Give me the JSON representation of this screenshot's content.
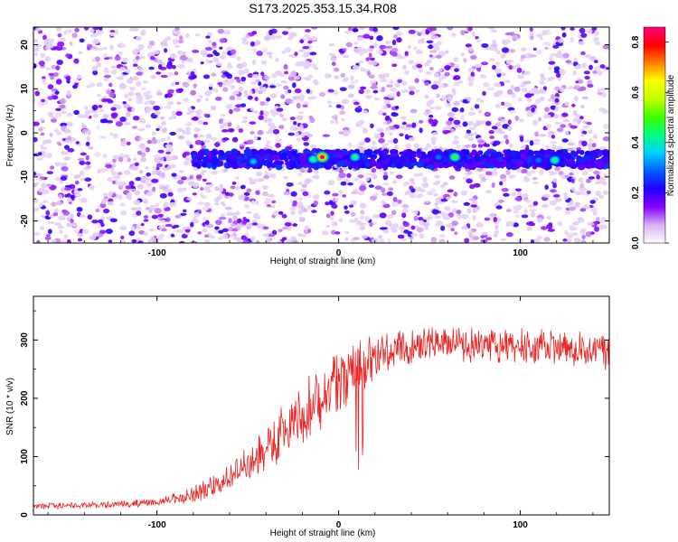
{
  "title": "S173.2025.353.15.34.R08",
  "chart_data": [
    {
      "type": "heatmap",
      "xlabel": "Height of straight line (km)",
      "ylabel": "Frequency (Hz)",
      "xlim": [
        -168,
        149
      ],
      "ylim": [
        -25,
        24
      ],
      "xticks": [
        -100,
        0,
        100
      ],
      "yticks": [
        -20,
        -10,
        0,
        10,
        20
      ],
      "colorbar": {
        "label": "Normalized spectral amplitude",
        "range": [
          0,
          0.86
        ],
        "ticks": [
          0.0,
          0.2,
          0.4,
          0.6,
          0.8
        ],
        "colors": [
          "#ffffff",
          "#d8b0f0",
          "#8a00ff",
          "#2000ff",
          "#0060ff",
          "#00d0ff",
          "#00ff80",
          "#40ff00",
          "#c0ff00",
          "#ffff00",
          "#ff8000",
          "#ff0000",
          "#ff0080"
        ]
      },
      "band": {
        "frequency_center": -6,
        "frequency_halfwidth": 1.8
      },
      "blank_column_x": [
        -12,
        -7
      ],
      "hotspots": [
        {
          "x": -47,
          "y": -6.5,
          "amp": 0.35
        },
        {
          "x": -14,
          "y": -6.0,
          "amp": 0.45
        },
        {
          "x": -9,
          "y": -5.5,
          "amp": 0.85
        },
        {
          "x": 9,
          "y": -5.5,
          "amp": 0.45
        },
        {
          "x": 55,
          "y": -5.5,
          "amp": 0.3
        },
        {
          "x": 64,
          "y": -5.5,
          "amp": 0.5
        },
        {
          "x": 110,
          "y": -6.2,
          "amp": 0.3
        },
        {
          "x": 119,
          "y": -6.2,
          "amp": 0.45
        }
      ]
    },
    {
      "type": "line",
      "xlabel": "Height of straight line (km)",
      "ylabel": "SNR (10 * v/v)",
      "xlim": [
        -168,
        149
      ],
      "ylim": [
        0,
        375
      ],
      "xticks": [
        -100,
        0,
        100
      ],
      "yticks": [
        0,
        100,
        200,
        300
      ],
      "series": [
        {
          "color": "#ee2222",
          "baseline": [
            [
              -168,
              15
            ],
            [
              -120,
              18
            ],
            [
              -100,
              22
            ],
            [
              -85,
              30
            ],
            [
              -75,
              40
            ],
            [
              -65,
              55
            ],
            [
              -55,
              75
            ],
            [
              -45,
              95
            ],
            [
              -38,
              120
            ],
            [
              -30,
              145
            ],
            [
              -22,
              165
            ],
            [
              -15,
              190
            ],
            [
              -8,
              205
            ],
            [
              0,
              220
            ],
            [
              5,
              238
            ],
            [
              10,
              250
            ],
            [
              15,
              262
            ],
            [
              20,
              272
            ],
            [
              30,
              285
            ],
            [
              50,
              292
            ],
            [
              100,
              290
            ],
            [
              140,
              282
            ],
            [
              149,
              278
            ]
          ],
          "noise": [
            [
              -168,
              5
            ],
            [
              -100,
              7
            ],
            [
              -80,
              14
            ],
            [
              -60,
              28
            ],
            [
              -40,
              45
            ],
            [
              -20,
              55
            ],
            [
              0,
              60
            ],
            [
              20,
              40
            ],
            [
              40,
              30
            ],
            [
              149,
              32
            ]
          ]
        }
      ]
    }
  ]
}
